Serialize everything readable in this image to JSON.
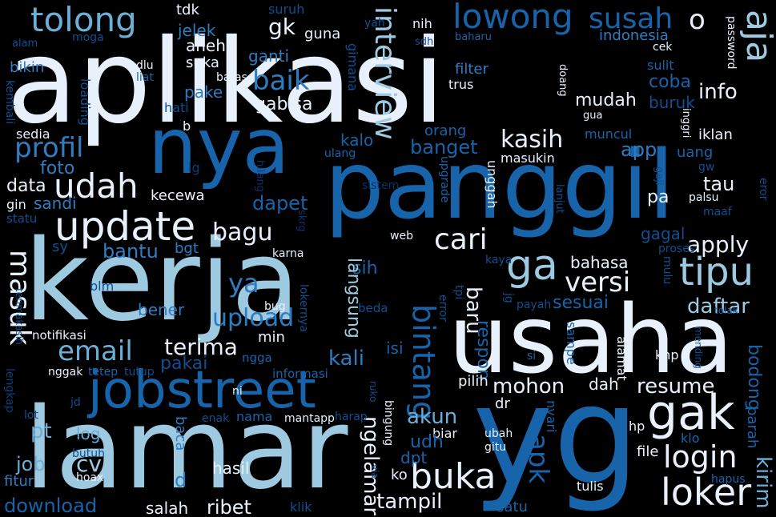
{
  "words": [
    "aplikasi",
    "nya",
    "panggil",
    "kerja",
    "usaha",
    "yg",
    "lamar",
    "jobstreet",
    "update",
    "udah",
    "gak",
    "ga",
    "tipu",
    "loker",
    "login",
    "cari",
    "buka",
    "apk",
    "tolong",
    "lowong",
    "susah",
    "aja",
    "interview",
    "profil",
    "email",
    "masuk",
    "bintang",
    "versi",
    "kasih",
    "bagu",
    "baik",
    "ya",
    "upload",
    "terima",
    "resume",
    "mohon",
    "apply",
    "daftar",
    "akun",
    "tampil",
    "kirim",
    "gk",
    "gabisa",
    "mudah",
    "info",
    "banget",
    "bantu",
    "kali",
    "sesuai",
    "bahasa",
    "baru",
    "respon",
    "sih",
    "dapet",
    "data",
    "foto",
    "sandi",
    "cv",
    "pt",
    "job",
    "fitur",
    "download",
    "salah",
    "ribet",
    "hasil",
    "ngelamar",
    "langsung",
    "bodong",
    "pakai",
    "bener",
    "coba",
    "buruk",
    "app",
    "tau",
    "pa",
    "gagal",
    "indonesia",
    "jelek",
    "ganti",
    "pake",
    "suka",
    "aneh",
    "kecewa",
    "dah",
    "tdk",
    "suruh",
    "guna",
    "nih",
    "yah",
    "moga",
    "alam",
    "bikin",
    "dlu",
    "liat",
    "hati",
    "batas",
    "loading",
    "kembali",
    "sedia",
    "b",
    "lg",
    "gin",
    "statu",
    "sy",
    "bgt",
    "blm",
    "notifikasi",
    "lengkap",
    "terimakasih",
    "nggak",
    "tetep",
    "tutup",
    "ngga",
    "informasi",
    "lot",
    "jd",
    "log",
    "butuh",
    "hoax",
    "d",
    "baca",
    "klik",
    "satu",
    "enak",
    "nama",
    "mantapp",
    "harap",
    "ruko",
    "via",
    "bingung",
    "biar",
    "dpt",
    "udh",
    "ko",
    "web",
    "proses",
    "tolak",
    "mulu",
    "kaya",
    "tpi",
    "jg",
    "payah",
    "error",
    "beda",
    "bug",
    "lokernya",
    "min",
    "karna",
    "ni",
    "sistem",
    "hilang",
    "skrg",
    "ulang",
    "orang",
    "kalo",
    "upgrade",
    "unggah",
    "masukin",
    "muncul",
    "lanjut",
    "gaji",
    "gw",
    "uang",
    "iklan",
    "inggri",
    "cek",
    "sulit",
    "baharu",
    "filter",
    "trus",
    "sdh",
    "doang",
    "gua",
    "password",
    "eror",
    "maaf",
    "palsu",
    "knp",
    "alamat",
    "sampe",
    "mending",
    "hapus",
    "file",
    "ubah",
    "gitu",
    "nyari",
    "dr",
    "pilih",
    "parah",
    "hp",
    "klo",
    "tulis",
    "isi",
    "gimana",
    "si",
    "arah"
  ],
  "palette": {
    "c1": "#e8f1fb",
    "c2": "#9ecae1",
    "c3": "#6baed6",
    "c4": "#2f7dc1",
    "c5": "#1764ab",
    "c6": "#0f4f91",
    "c7": "#0b3e7a",
    "c8": "#083269"
  }
}
